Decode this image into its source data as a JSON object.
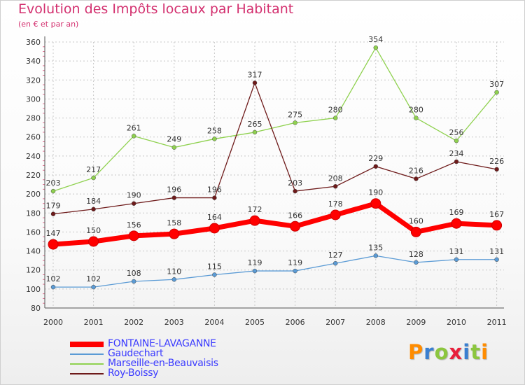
{
  "chart_data": {
    "type": "line",
    "title": "Evolution des Impôts locaux par Habitant",
    "subtitle": "(en € et par an)",
    "x": [
      "2000",
      "2001",
      "2002",
      "2003",
      "2004",
      "2005",
      "2006",
      "2007",
      "2008",
      "2009",
      "2010",
      "2011"
    ],
    "ylim": [
      80,
      360
    ],
    "yticks": [
      "80",
      "100",
      "120",
      "140",
      "160",
      "180",
      "200",
      "220",
      "240",
      "260",
      "280",
      "300",
      "320",
      "340",
      "360"
    ],
    "grid": true,
    "series": [
      {
        "name": "FONTAINE-LAVAGANNE",
        "color": "#ff0000",
        "values": [
          147,
          150,
          156,
          158,
          164,
          172,
          166,
          178,
          190,
          160,
          169,
          167
        ]
      },
      {
        "name": "Gaudechart",
        "color": "#5b9bd5",
        "values": [
          102,
          102,
          108,
          110,
          115,
          119,
          119,
          127,
          135,
          128,
          131,
          131
        ]
      },
      {
        "name": "Marseille-en-Beauvaisis",
        "color": "#8fd14f",
        "values": [
          203,
          217,
          261,
          249,
          258,
          265,
          275,
          280,
          354,
          280,
          256,
          307
        ]
      },
      {
        "name": "Roy-Boissy",
        "color": "#6e1a1a",
        "values": [
          179,
          184,
          190,
          196,
          196,
          317,
          203,
          208,
          229,
          216,
          234,
          226
        ]
      }
    ]
  },
  "logo": {
    "letters": [
      "P",
      "r",
      "o",
      "x",
      "i",
      "t",
      "i"
    ],
    "colors": [
      "#ff8c00",
      "#3a7fd0",
      "#8cc63f",
      "#e8203c",
      "#3a7fd0",
      "#8cc63f",
      "#ff8c00"
    ]
  }
}
